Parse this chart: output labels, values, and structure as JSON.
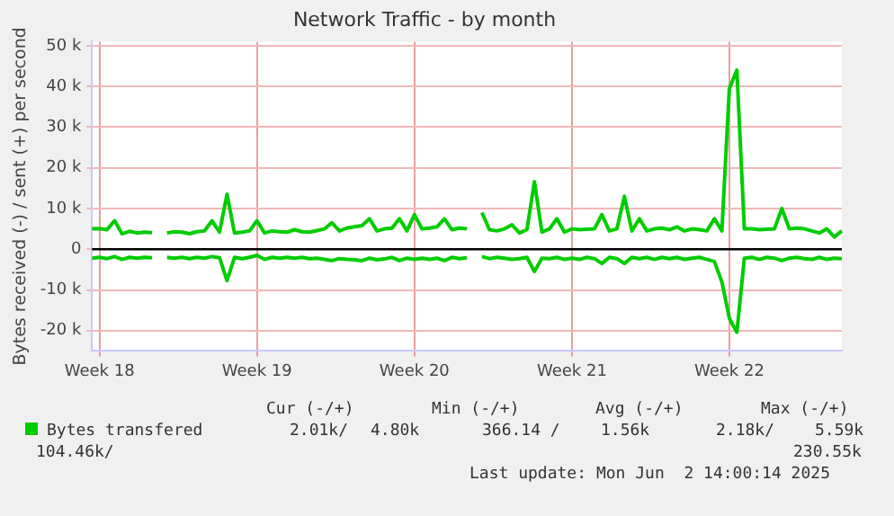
{
  "chart_data": {
    "type": "line",
    "title": "Network Traffic - by month",
    "ylabel": "Bytes received (-) / sent (+) per second",
    "categories": [
      null,
      "Week 18",
      null,
      null,
      null,
      null,
      null,
      null,
      null,
      null,
      null,
      null,
      null,
      null,
      null,
      null,
      null,
      null,
      null,
      null,
      null,
      null,
      "Week 19",
      null,
      null,
      null,
      null,
      null,
      null,
      null,
      null,
      null,
      null,
      null,
      null,
      null,
      null,
      null,
      null,
      null,
      null,
      null,
      null,
      "Week 20",
      null,
      null,
      null,
      null,
      null,
      null,
      null,
      null,
      null,
      null,
      null,
      null,
      null,
      null,
      null,
      null,
      null,
      null,
      null,
      null,
      "Week 21",
      null,
      null,
      null,
      null,
      null,
      null,
      null,
      null,
      null,
      null,
      null,
      null,
      null,
      null,
      null,
      null,
      null,
      null,
      null,
      null,
      "Week 22",
      null,
      null,
      null,
      null,
      null,
      null,
      null,
      null,
      null,
      null,
      null,
      null,
      null,
      null,
      null
    ],
    "series": [
      {
        "name": "Bytes transfered",
        "color": "#00cc00",
        "values": [
          5000,
          5100,
          4800,
          7000,
          3800,
          4400,
          4000,
          4200,
          4100,
          null,
          4000,
          4300,
          4200,
          3800,
          4300,
          4500,
          7000,
          4200,
          13500,
          4000,
          4200,
          4500,
          7000,
          4000,
          4500,
          4300,
          4200,
          4800,
          4300,
          4200,
          4600,
          5000,
          6500,
          4500,
          5200,
          5500,
          5800,
          7500,
          4500,
          5000,
          5200,
          7500,
          4500,
          8500,
          5000,
          5200,
          5500,
          7500,
          4800,
          5200,
          5000,
          null,
          9000,
          4800,
          4500,
          5000,
          6000,
          4000,
          4800,
          16600,
          4200,
          5000,
          7500,
          4200,
          5000,
          4800,
          4900,
          5000,
          8500,
          4500,
          5000,
          13000,
          4500,
          7500,
          4500,
          5000,
          5200,
          4800,
          5500,
          4500,
          5000,
          4800,
          4500,
          7500,
          4500,
          39500,
          44000,
          5000,
          5000,
          4800,
          4900,
          5000,
          10000,
          5000,
          5200,
          5000,
          4500,
          4000,
          5000,
          3000,
          4500
        ]
      },
      {
        "color": "#00cc00",
        "values": [
          -2200,
          -2000,
          -2300,
          -1800,
          -2500,
          -2000,
          -2200,
          -2000,
          -2100,
          null,
          -2000,
          -2200,
          -2000,
          -2300,
          -2000,
          -2200,
          -1800,
          -2100,
          -7700,
          -2000,
          -2300,
          -2000,
          -1500,
          -2500,
          -2000,
          -2200,
          -2000,
          -2200,
          -2000,
          -2300,
          -2200,
          -2500,
          -2800,
          -2300,
          -2500,
          -2600,
          -2800,
          -2200,
          -2600,
          -2400,
          -2000,
          -2800,
          -2200,
          -2500,
          -2200,
          -2500,
          -2200,
          -2800,
          -2000,
          -2300,
          -2100,
          null,
          -1800,
          -2300,
          -2000,
          -2200,
          -2500,
          -2300,
          -2000,
          -5500,
          -2200,
          -2300,
          -2000,
          -2500,
          -2200,
          -2500,
          -2000,
          -2300,
          -3500,
          -2000,
          -2300,
          -3500,
          -2000,
          -2300,
          -2000,
          -2500,
          -2000,
          -2300,
          -2000,
          -2500,
          -2200,
          -2000,
          -2500,
          -3000,
          -8000,
          -17000,
          -20400,
          -2200,
          -2000,
          -2500,
          -2000,
          -2200,
          -2800,
          -2200,
          -2000,
          -2300,
          -2500,
          -2000,
          -2500,
          -2200,
          -2300
        ]
      }
    ],
    "ylim": [
      -25000,
      51000
    ],
    "yticks": [
      {
        "value": -20000,
        "label": "-20 k"
      },
      {
        "value": -10000,
        "label": "-10 k"
      },
      0,
      {
        "value": 10000,
        "label": "10 k"
      },
      {
        "value": 20000,
        "label": "20 k"
      },
      {
        "value": 30000,
        "label": "30 k"
      },
      {
        "value": 40000,
        "label": "40 k"
      },
      {
        "value": 50000,
        "label": "50 k"
      }
    ],
    "ref_lines": [
      {
        "axis": "y",
        "value": 0,
        "color": "#000000"
      }
    ],
    "grid": true,
    "legend": "bottom left",
    "marker": "none",
    "line_style": "solid",
    "annotations": [
      "Cur (-/+)",
      "Min (-/+)",
      "Avg (-/+)",
      "Max (-/+)",
      "2.01k/",
      "4.80k",
      "366.14 /",
      "1.56k",
      "2.18k/",
      "5.59k",
      "104.46k/",
      "230.55k",
      "Last update: Mon Jun  2 14:00:14 2025"
    ]
  }
}
